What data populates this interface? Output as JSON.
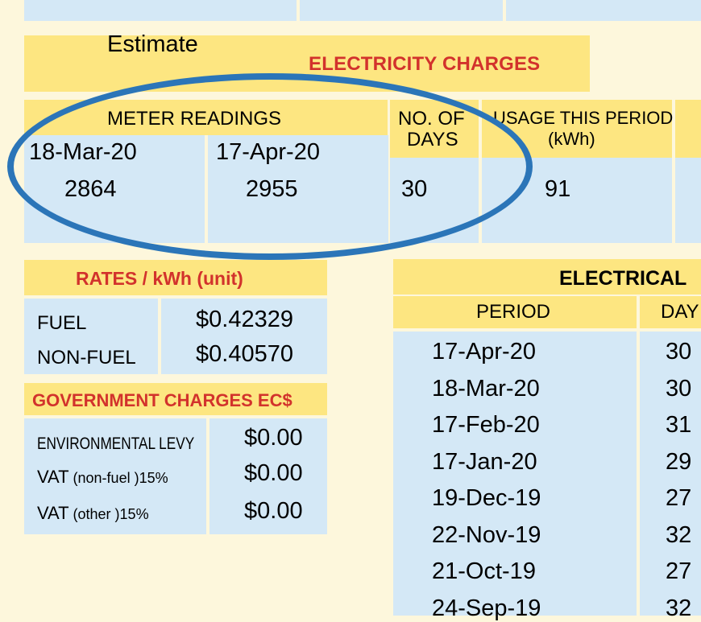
{
  "annotation": {
    "estimate_label": "Estimate"
  },
  "electricity_charges": {
    "title": "ELECTRICITY CHARGES",
    "meter_readings_label": "METER READINGS",
    "no_of_days_label_1": "NO. OF",
    "no_of_days_label_2": "DAYS",
    "usage_label_1": "USAGE THIS PERIOD",
    "usage_label_2": "(kWh)",
    "prev_date": "18-Mar-20",
    "curr_date": "17-Apr-20",
    "prev_reading": "2864",
    "curr_reading": "2955",
    "days": "30",
    "usage": "91"
  },
  "rates": {
    "title": "RATES / kWh (unit)",
    "items": [
      {
        "label": "FUEL",
        "value": "$0.42329"
      },
      {
        "label": "NON-FUEL",
        "value": "$0.40570"
      }
    ]
  },
  "government_charges": {
    "title": "GOVERNMENT CHARGES EC$",
    "items": [
      {
        "label": "ENVIRONMENTAL LEVY",
        "suffix": "",
        "value": "$0.00"
      },
      {
        "label": "VAT",
        "suffix": " (non-fuel )15%",
        "value": "$0.00"
      },
      {
        "label": "VAT",
        "suffix": " (other )15%",
        "value": "$0.00"
      }
    ]
  },
  "electrical_history": {
    "title": "ELECTRICAL",
    "period_label": "PERIOD",
    "days_label": "DAY",
    "rows": [
      {
        "period": "17-Apr-20",
        "days": "30"
      },
      {
        "period": "18-Mar-20",
        "days": "30"
      },
      {
        "period": "17-Feb-20",
        "days": "31"
      },
      {
        "period": "17-Jan-20",
        "days": "29"
      },
      {
        "period": "19-Dec-19",
        "days": "27"
      },
      {
        "period": "22-Nov-19",
        "days": "32"
      },
      {
        "period": "21-Oct-19",
        "days": "27"
      },
      {
        "period": "24-Sep-19",
        "days": "32"
      }
    ]
  },
  "colors": {
    "page_bg": "#fdf7dc",
    "cell_blue": "#d4e8f6",
    "header_yellow": "#fde681",
    "header_red": "#d2322c",
    "annotation_blue": "#2b75b8"
  }
}
